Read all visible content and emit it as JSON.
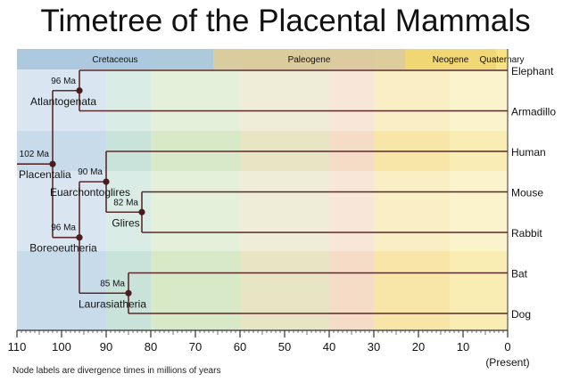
{
  "title": "Timetree of the Placental Mammals",
  "footnote": "Node labels are divergence times in millions of years",
  "present_label": "(Present)",
  "axis": {
    "min": 110,
    "max": 0,
    "tick_labels": [
      110,
      100,
      90,
      80,
      70,
      60,
      50,
      40,
      30,
      20,
      10,
      0
    ]
  },
  "periods": [
    {
      "name": "Cretaceous",
      "start": 110,
      "end": 66,
      "header": "#a9c6df"
    },
    {
      "name": "Paleogene",
      "start": 66,
      "end": 23,
      "header": "#d9c99a"
    },
    {
      "name": "Neogene",
      "start": 23,
      "end": 2.6,
      "header": "#f0d46e"
    },
    {
      "name": "Quaternary",
      "start": 2.6,
      "end": 0,
      "header": "#f7e07c"
    }
  ],
  "bands": [
    {
      "start": 110,
      "end": 90,
      "color": "#c7dbeb"
    },
    {
      "start": 90,
      "end": 80,
      "color": "#c9e3da"
    },
    {
      "start": 80,
      "end": 60,
      "color": "#d8e9c7"
    },
    {
      "start": 60,
      "end": 40,
      "color": "#e8e5c4"
    },
    {
      "start": 40,
      "end": 30,
      "color": "#f5dcc6"
    },
    {
      "start": 30,
      "end": 13,
      "color": "#f8e6a8"
    },
    {
      "start": 13,
      "end": 0,
      "color": "#faedb3"
    }
  ],
  "taxa": [
    "Elephant",
    "Armadillo",
    "Human",
    "Mouse",
    "Rabbit",
    "Bat",
    "Dog"
  ],
  "nodes": [
    {
      "id": "placentalia",
      "label": "Placentalia",
      "age": 102,
      "age_label": "102 Ma",
      "children": [
        "atlantogenata",
        "boreoeutheria"
      ]
    },
    {
      "id": "atlantogenata",
      "label": "Atlantogenata",
      "age": 96,
      "age_label": "96 Ma",
      "children": [
        "Elephant",
        "Armadillo"
      ]
    },
    {
      "id": "boreoeutheria",
      "label": "Boreoeutheria",
      "age": 96,
      "age_label": "96 Ma",
      "children": [
        "euarchontoglires",
        "laurasiatheria"
      ]
    },
    {
      "id": "euarchontoglires",
      "label": "Euarchontoglires",
      "age": 90,
      "age_label": "90 Ma",
      "children": [
        "Human",
        "glires"
      ]
    },
    {
      "id": "glires",
      "label": "Glires",
      "age": 82,
      "age_label": "82 Ma",
      "children": [
        "Mouse",
        "Rabbit"
      ]
    },
    {
      "id": "laurasiatheria",
      "label": "Laurasiatheria",
      "age": 85,
      "age_label": "85 Ma",
      "children": [
        "Bat",
        "Dog"
      ]
    }
  ]
}
